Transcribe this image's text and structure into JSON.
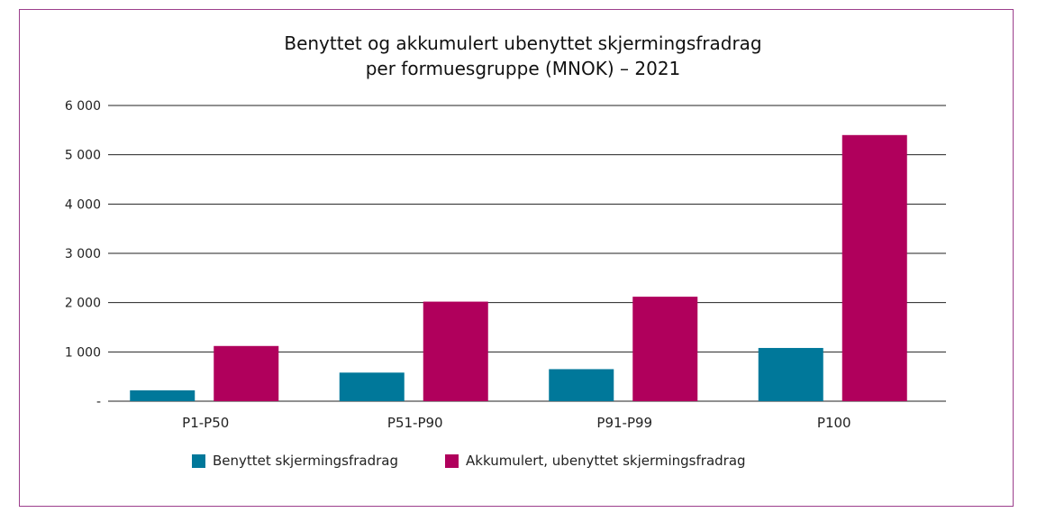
{
  "chart_data": {
    "type": "bar",
    "title_line1": "Benyttet og akkumulert ubenyttet skjermingsfradrag",
    "title_line2": "per formuesgruppe (MNOK) – 2021",
    "categories": [
      "P1-P50",
      "P51-P90",
      "P91-P99",
      "P100"
    ],
    "series": [
      {
        "name": "Benyttet skjermingsfradrag",
        "color": "#00789a",
        "values": [
          220,
          580,
          650,
          1080
        ]
      },
      {
        "name": "Akkumulert, ubenyttet skjermingsfradrag",
        "color": "#b0005c",
        "values": [
          1120,
          2020,
          2120,
          5400
        ]
      }
    ],
    "ylim": [
      0,
      6000
    ],
    "yticks": [
      0,
      1000,
      2000,
      3000,
      4000,
      5000,
      6000
    ],
    "ytick_labels": [
      "-",
      "1 000",
      "2 000",
      "3 000",
      "4 000",
      "5 000",
      "6 000"
    ],
    "grid": true,
    "legend_position": "bottom"
  }
}
